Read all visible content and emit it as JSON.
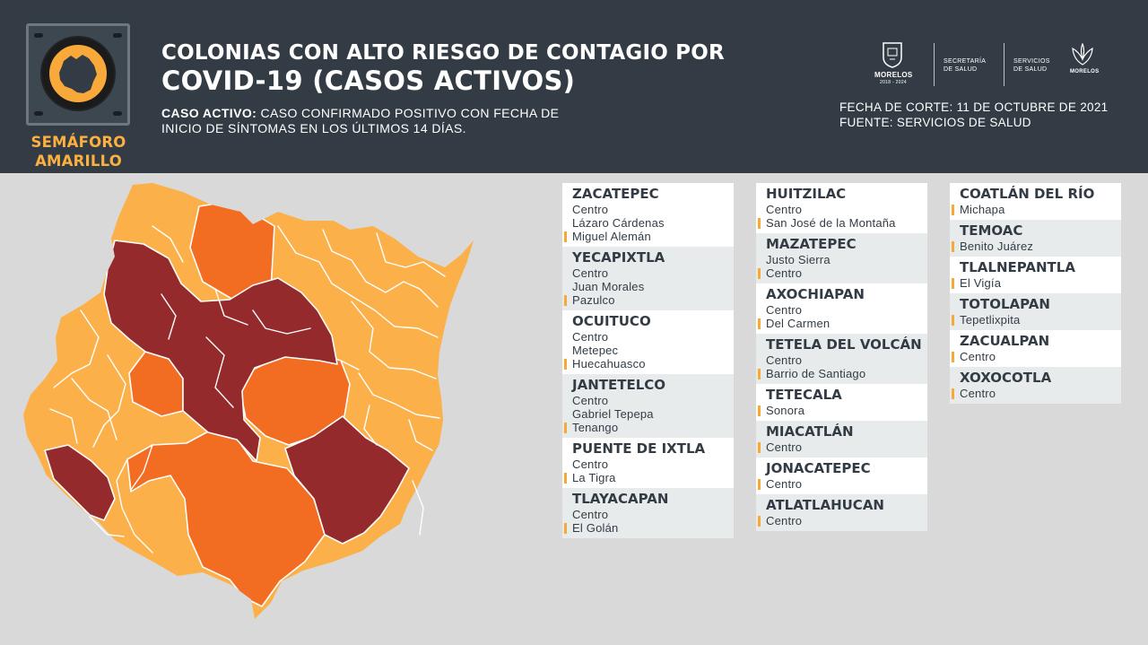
{
  "header": {
    "title_line1": "COLONIAS CON ALTO RIESGO DE CONTAGIO POR",
    "title_line2": "COVID-19 (CASOS ACTIVOS)",
    "definition_label": "CASO ACTIVO:",
    "definition_text_line1": " CASO CONFIRMADO POSITIVO CON FECHA DE",
    "definition_text_line2": "INICIO DE SÍNTOMAS EN LOS ÚLTIMOS 14 DÍAS.",
    "fecha_corte": "FECHA DE CORTE: 11 DE OCTUBRE DE 2021",
    "fuente": "FUENTE: SERVICIOS DE SALUD"
  },
  "semaforo": {
    "line1": "SEMÁFORO",
    "line2": "AMARILLO",
    "color": "#fbb040"
  },
  "logos": {
    "morelos_name": "MORELOS",
    "morelos_years": "2018 - 2024",
    "secretaria_line1": "SECRETARÍA",
    "secretaria_line2": "DE SALUD",
    "servicios_line1": "SERVICIOS",
    "servicios_line2": "DE SALUD",
    "ssm_name": "MORELOS"
  },
  "map_legend_colors": {
    "light": "#fbb04a",
    "medium": "#f26c22",
    "dark": "#952a2c"
  },
  "municipios": [
    [
      {
        "name": "ZACATEPEC",
        "colonias": [
          "Centro",
          "Lázaro Cárdenas",
          "Miguel Alemán"
        ]
      },
      {
        "name": "YECAPIXTLA",
        "colonias": [
          "Centro",
          "Juan Morales",
          "Pazulco"
        ]
      },
      {
        "name": "OCUITUCO",
        "colonias": [
          "Centro",
          "Metepec",
          "Huecahuasco"
        ]
      },
      {
        "name": "JANTETELCO",
        "colonias": [
          "Centro",
          "Gabriel Tepepa",
          "Tenango"
        ]
      },
      {
        "name": "PUENTE DE IXTLA",
        "colonias": [
          "Centro",
          "La Tigra"
        ]
      },
      {
        "name": "TLAYACAPAN",
        "colonias": [
          "Centro",
          "El Golán"
        ]
      }
    ],
    [
      {
        "name": "HUITZILAC",
        "colonias": [
          "Centro",
          "San José de la Montaña"
        ]
      },
      {
        "name": "MAZATEPEC",
        "colonias": [
          "Justo Sierra",
          "Centro"
        ]
      },
      {
        "name": "AXOCHIAPAN",
        "colonias": [
          "Centro",
          "Del Carmen"
        ]
      },
      {
        "name": "TETELA DEL VOLCÁN",
        "colonias": [
          "Centro",
          "Barrio de Santiago"
        ]
      },
      {
        "name": "TETECALA",
        "colonias": [
          "Sonora"
        ]
      },
      {
        "name": "MIACATLÁN",
        "colonias": [
          "Centro"
        ]
      },
      {
        "name": "JONACATEPEC",
        "colonias": [
          "Centro"
        ]
      },
      {
        "name": "ATLATLAHUCAN",
        "colonias": [
          "Centro"
        ]
      }
    ],
    [
      {
        "name": "COATLÁN DEL RÍO",
        "colonias": [
          "Michapa"
        ]
      },
      {
        "name": "TEMOAC",
        "colonias": [
          "Benito Juárez"
        ]
      },
      {
        "name": "TLALNEPANTLA",
        "colonias": [
          "El Vigía"
        ]
      },
      {
        "name": "TOTOLAPAN",
        "colonias": [
          "Tepetlixpita"
        ]
      },
      {
        "name": "ZACUALPAN",
        "colonias": [
          "Centro"
        ]
      },
      {
        "name": "XOXOCOTLA",
        "colonias": [
          "Centro"
        ]
      }
    ]
  ]
}
